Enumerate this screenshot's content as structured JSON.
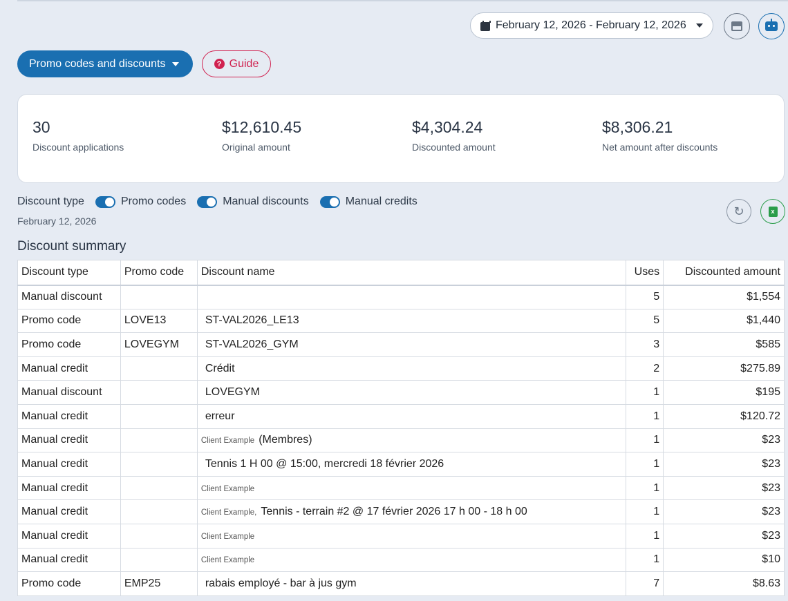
{
  "header": {
    "date_range": "February 12, 2026 - February 12, 2026"
  },
  "toolbar": {
    "promo_menu_label": "Promo codes and discounts",
    "guide_label": "Guide"
  },
  "stats": [
    {
      "value": "30",
      "label": "Discount applications"
    },
    {
      "value": "$12,610.45",
      "label": "Original amount"
    },
    {
      "value": "$4,304.24",
      "label": "Discounted amount"
    },
    {
      "value": "$8,306.21",
      "label": "Net amount after discounts"
    }
  ],
  "filters": {
    "label": "Discount type",
    "toggles": [
      {
        "label": "Promo codes",
        "on": true
      },
      {
        "label": "Manual discounts",
        "on": true
      },
      {
        "label": "Manual credits",
        "on": true
      }
    ],
    "date": "February 12, 2026"
  },
  "summary": {
    "title": "Discount summary",
    "columns": [
      "Discount type",
      "Promo code",
      "Discount name",
      "Uses",
      "Discounted amount"
    ],
    "rows": [
      {
        "type": "Manual discount",
        "code": "",
        "name_small": "",
        "name": "",
        "uses": "5",
        "amount": "$1,554"
      },
      {
        "type": "Promo code",
        "code": "LOVE13",
        "name_small": "",
        "name": "ST-VAL2026_LE13",
        "uses": "5",
        "amount": "$1,440"
      },
      {
        "type": "Promo code",
        "code": "LOVEGYM",
        "name_small": "",
        "name": "ST-VAL2026_GYM",
        "uses": "3",
        "amount": "$585"
      },
      {
        "type": "Manual credit",
        "code": "",
        "name_small": "",
        "name": "Crédit",
        "uses": "2",
        "amount": "$275.89"
      },
      {
        "type": "Manual discount",
        "code": "",
        "name_small": "",
        "name": "LOVEGYM",
        "uses": "1",
        "amount": "$195"
      },
      {
        "type": "Manual credit",
        "code": "",
        "name_small": "",
        "name": "erreur",
        "uses": "1",
        "amount": "$120.72"
      },
      {
        "type": "Manual credit",
        "code": "",
        "name_small": "Client Example",
        "name": "(Membres)",
        "uses": "1",
        "amount": "$23"
      },
      {
        "type": "Manual credit",
        "code": "",
        "name_small": "",
        "name": "Tennis 1 H 00 @ 15:00, mercredi 18 février 2026",
        "uses": "1",
        "amount": "$23"
      },
      {
        "type": "Manual credit",
        "code": "",
        "name_small": "Client Example",
        "name": "",
        "uses": "1",
        "amount": "$23"
      },
      {
        "type": "Manual credit",
        "code": "",
        "name_small": "Client Example,",
        "name": "Tennis - terrain #2 @ 17 février 2026 17 h 00 - 18 h 00",
        "uses": "1",
        "amount": "$23"
      },
      {
        "type": "Manual credit",
        "code": "",
        "name_small": "Client Example",
        "name": "",
        "uses": "1",
        "amount": "$23"
      },
      {
        "type": "Manual credit",
        "code": "",
        "name_small": "Client Example",
        "name": "",
        "uses": "1",
        "amount": "$10"
      },
      {
        "type": "Promo code",
        "code": "EMP25",
        "name_small": "",
        "name": "rabais employé - bar à jus gym",
        "uses": "7",
        "amount": "$8.63"
      }
    ]
  }
}
